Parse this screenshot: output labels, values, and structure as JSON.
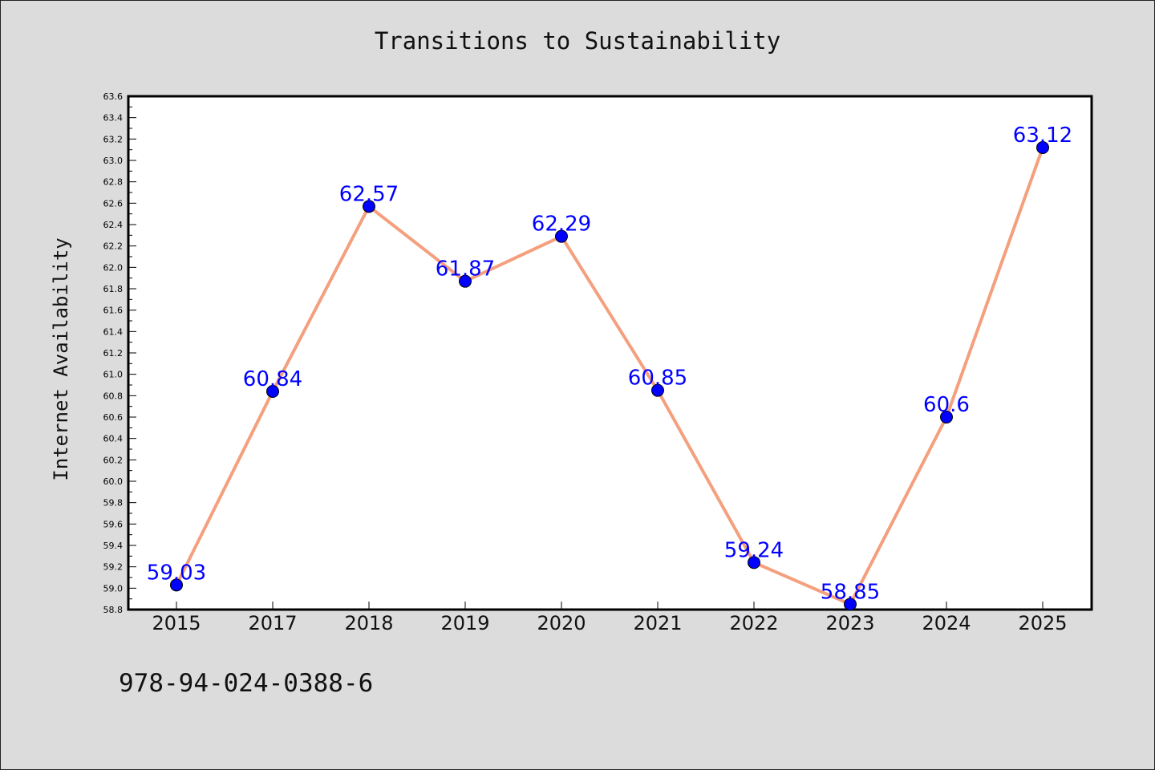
{
  "chart_data": {
    "type": "line",
    "title": "Transitions to Sustainability",
    "xlabel": "",
    "ylabel": "Internet Availability",
    "categories": [
      "2015",
      "2017",
      "2018",
      "2019",
      "2020",
      "2021",
      "2022",
      "2023",
      "2024",
      "2025"
    ],
    "values": [
      59.03,
      60.84,
      62.57,
      61.87,
      62.29,
      60.85,
      59.24,
      58.85,
      60.6,
      63.12
    ],
    "value_labels": [
      "59.03",
      "60.84",
      "62.57",
      "61.87",
      "62.29",
      "60.85",
      "59.24",
      "58.85",
      "60.6",
      "63.12"
    ],
    "ylim": [
      58.8,
      63.6
    ],
    "yticks": [
      "58.8",
      "59.0",
      "59.2",
      "59.4",
      "59.6",
      "59.8",
      "60.0",
      "60.2",
      "60.4",
      "60.6",
      "60.8",
      "61.0",
      "61.2",
      "61.4",
      "61.6",
      "61.8",
      "62.0",
      "62.2",
      "62.4",
      "62.6",
      "62.8",
      "63.0",
      "63.2",
      "63.4",
      "63.6"
    ],
    "grid": false,
    "line_color": "#f4a07e",
    "marker_color": "#0000ff",
    "label_color": "#0000ff"
  },
  "footer": {
    "isbn": "978-94-024-0388-6"
  }
}
